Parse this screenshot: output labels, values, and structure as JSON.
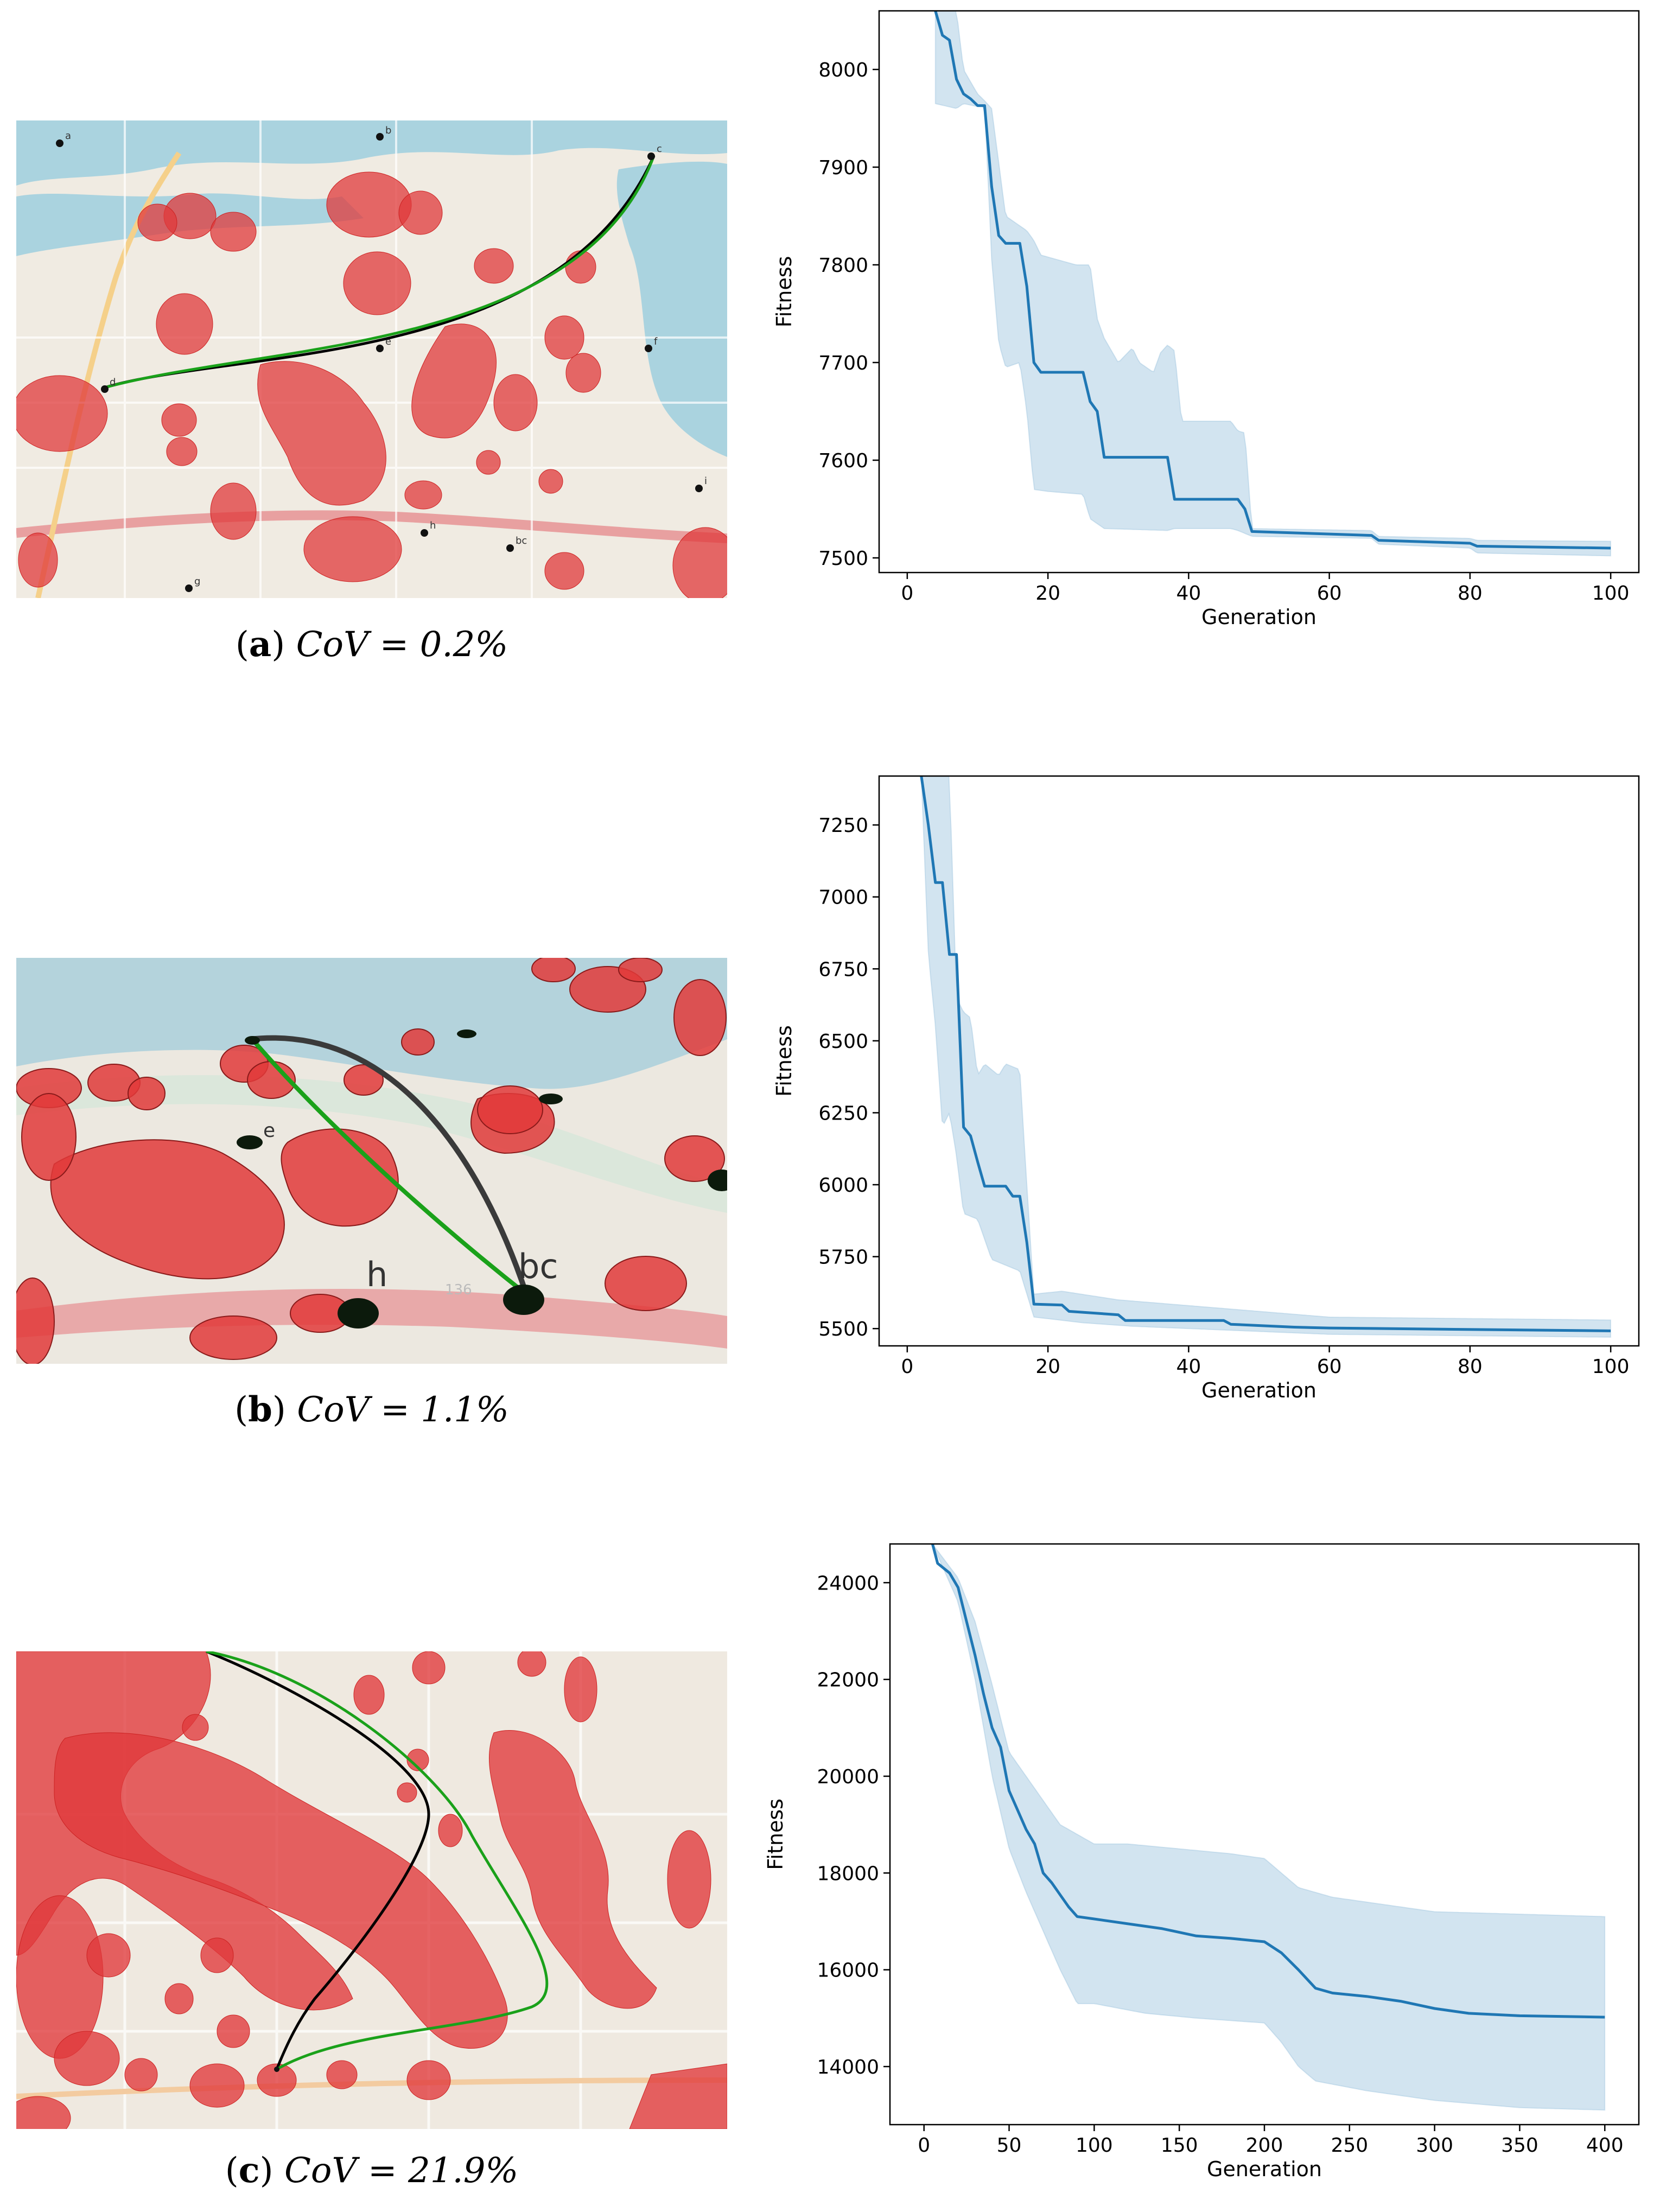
{
  "panels": [
    {
      "id": "a",
      "caption_letter": "a",
      "caption_eq": "CoV = 0.2%",
      "map_labels": [
        "a",
        "b",
        "c",
        "d",
        "e",
        "f",
        "h",
        "bc",
        "g",
        "i"
      ],
      "chart": {
        "type": "line",
        "xlabel": "Generation",
        "ylabel": "Fitness",
        "xlim": [
          -4,
          104
        ],
        "ylim": [
          7485,
          8060
        ],
        "xticks": [
          0,
          20,
          40,
          60,
          80,
          100
        ],
        "yticks": [
          7500,
          7600,
          7700,
          7800,
          7900,
          8000
        ],
        "mean": [
          [
            4,
            8060
          ],
          [
            5,
            8035
          ],
          [
            6,
            8030
          ],
          [
            7,
            7990
          ],
          [
            8,
            7975
          ],
          [
            9,
            7970
          ],
          [
            10,
            7963
          ],
          [
            11,
            7963
          ],
          [
            12,
            7880
          ],
          [
            13,
            7830
          ],
          [
            14,
            7822
          ],
          [
            16,
            7822
          ],
          [
            17,
            7778
          ],
          [
            18,
            7700
          ],
          [
            19,
            7690
          ],
          [
            25,
            7690
          ],
          [
            26,
            7660
          ],
          [
            27,
            7650
          ],
          [
            28,
            7603
          ],
          [
            37,
            7603
          ],
          [
            38,
            7560
          ],
          [
            47,
            7560
          ],
          [
            48,
            7550
          ],
          [
            49,
            7527
          ],
          [
            66,
            7523
          ],
          [
            67,
            7518
          ],
          [
            80,
            7515
          ],
          [
            81,
            7512
          ],
          [
            100,
            7510
          ]
        ],
        "upper": [
          [
            4,
            8060
          ],
          [
            7,
            8060
          ],
          [
            8,
            8000
          ],
          [
            10,
            7975
          ],
          [
            11,
            7968
          ],
          [
            12,
            7960
          ],
          [
            13,
            7905
          ],
          [
            14,
            7850
          ],
          [
            16,
            7840
          ],
          [
            17,
            7835
          ],
          [
            18,
            7825
          ],
          [
            19,
            7810
          ],
          [
            24,
            7800
          ],
          [
            26,
            7800
          ],
          [
            27,
            7745
          ],
          [
            28,
            7725
          ],
          [
            30,
            7700
          ],
          [
            32,
            7715
          ],
          [
            33,
            7700
          ],
          [
            35,
            7690
          ],
          [
            36,
            7710
          ],
          [
            37,
            7718
          ],
          [
            38,
            7712
          ],
          [
            39,
            7640
          ],
          [
            46,
            7640
          ],
          [
            47,
            7630
          ],
          [
            48,
            7628
          ],
          [
            49,
            7530
          ],
          [
            66,
            7528
          ],
          [
            67,
            7522
          ],
          [
            80,
            7520
          ],
          [
            81,
            7518
          ],
          [
            100,
            7517
          ]
        ],
        "lower": [
          [
            4,
            7965
          ],
          [
            7,
            7960
          ],
          [
            8,
            7965
          ],
          [
            10,
            7962
          ],
          [
            11,
            7962
          ],
          [
            12,
            7805
          ],
          [
            13,
            7720
          ],
          [
            14,
            7695
          ],
          [
            16,
            7700
          ],
          [
            17,
            7650
          ],
          [
            18,
            7570
          ],
          [
            20,
            7568
          ],
          [
            25,
            7565
          ],
          [
            26,
            7540
          ],
          [
            28,
            7530
          ],
          [
            37,
            7528
          ],
          [
            38,
            7530
          ],
          [
            46,
            7530
          ],
          [
            47,
            7528
          ],
          [
            49,
            7522
          ],
          [
            66,
            7520
          ],
          [
            67,
            7514
          ],
          [
            80,
            7510
          ],
          [
            81,
            7505
          ],
          [
            100,
            7502
          ]
        ]
      }
    },
    {
      "id": "b",
      "caption_letter": "b",
      "caption_eq": "CoV = 1.1%",
      "map_labels": [
        "e",
        "h",
        "bc",
        "136"
      ],
      "chart": {
        "type": "line",
        "xlabel": "Generation",
        "ylabel": "Fitness",
        "xlim": [
          -4,
          104
        ],
        "ylim": [
          5440,
          7420
        ],
        "xticks": [
          0,
          20,
          40,
          60,
          80,
          100
        ],
        "yticks": [
          5500,
          5750,
          6000,
          6250,
          6500,
          6750,
          7000,
          7250
        ],
        "mean": [
          [
            2,
            7420
          ],
          [
            3,
            7250
          ],
          [
            4,
            7050
          ],
          [
            5,
            7050
          ],
          [
            6,
            6800
          ],
          [
            7,
            6800
          ],
          [
            8,
            6200
          ],
          [
            9,
            6170
          ],
          [
            10,
            6080
          ],
          [
            11,
            5995
          ],
          [
            14,
            5995
          ],
          [
            15,
            5960
          ],
          [
            16,
            5960
          ],
          [
            17,
            5800
          ],
          [
            18,
            5585
          ],
          [
            22,
            5582
          ],
          [
            23,
            5560
          ],
          [
            30,
            5548
          ],
          [
            31,
            5528
          ],
          [
            45,
            5528
          ],
          [
            46,
            5515
          ],
          [
            55,
            5505
          ],
          [
            60,
            5502
          ],
          [
            100,
            5492
          ]
        ],
        "upper": [
          [
            2,
            7420
          ],
          [
            6,
            7420
          ],
          [
            7,
            6650
          ],
          [
            8,
            6600
          ],
          [
            9,
            6580
          ],
          [
            10,
            6380
          ],
          [
            11,
            6420
          ],
          [
            13,
            6380
          ],
          [
            14,
            6420
          ],
          [
            16,
            6400
          ],
          [
            17,
            6000
          ],
          [
            18,
            5620
          ],
          [
            22,
            5630
          ],
          [
            30,
            5600
          ],
          [
            40,
            5580
          ],
          [
            50,
            5560
          ],
          [
            60,
            5540
          ],
          [
            100,
            5530
          ]
        ],
        "lower": [
          [
            2,
            7420
          ],
          [
            3,
            6800
          ],
          [
            4,
            6550
          ],
          [
            5,
            6200
          ],
          [
            6,
            6250
          ],
          [
            7,
            6100
          ],
          [
            8,
            5900
          ],
          [
            10,
            5880
          ],
          [
            12,
            5740
          ],
          [
            14,
            5720
          ],
          [
            16,
            5700
          ],
          [
            18,
            5540
          ],
          [
            25,
            5520
          ],
          [
            32,
            5508
          ],
          [
            40,
            5500
          ],
          [
            60,
            5480
          ],
          [
            100,
            5470
          ]
        ]
      }
    },
    {
      "id": "c",
      "caption_letter": "c",
      "caption_eq": "CoV = 21.9%",
      "map_labels": [],
      "chart": {
        "type": "line",
        "xlabel": "Generation",
        "ylabel": "Fitness",
        "xlim": [
          -20,
          420
        ],
        "ylim": [
          12800,
          24800
        ],
        "xticks": [
          0,
          50,
          100,
          150,
          200,
          250,
          300,
          350,
          400
        ],
        "yticks": [
          14000,
          16000,
          18000,
          20000,
          22000,
          24000
        ],
        "mean": [
          [
            5,
            24800
          ],
          [
            8,
            24400
          ],
          [
            15,
            24200
          ],
          [
            20,
            23900
          ],
          [
            25,
            23200
          ],
          [
            30,
            22500
          ],
          [
            35,
            21700
          ],
          [
            40,
            21000
          ],
          [
            45,
            20600
          ],
          [
            50,
            19700
          ],
          [
            55,
            19300
          ],
          [
            60,
            18900
          ],
          [
            65,
            18600
          ],
          [
            70,
            18000
          ],
          [
            75,
            17800
          ],
          [
            80,
            17550
          ],
          [
            85,
            17300
          ],
          [
            90,
            17100
          ],
          [
            100,
            17050
          ],
          [
            120,
            16950
          ],
          [
            140,
            16850
          ],
          [
            160,
            16700
          ],
          [
            180,
            16650
          ],
          [
            200,
            16580
          ],
          [
            210,
            16350
          ],
          [
            220,
            16000
          ],
          [
            230,
            15620
          ],
          [
            240,
            15520
          ],
          [
            260,
            15450
          ],
          [
            280,
            15350
          ],
          [
            300,
            15200
          ],
          [
            320,
            15100
          ],
          [
            350,
            15050
          ],
          [
            400,
            15020
          ]
        ],
        "upper": [
          [
            5,
            24800
          ],
          [
            20,
            24100
          ],
          [
            30,
            23200
          ],
          [
            40,
            21900
          ],
          [
            50,
            20500
          ],
          [
            60,
            20000
          ],
          [
            70,
            19500
          ],
          [
            80,
            19000
          ],
          [
            90,
            18800
          ],
          [
            100,
            18600
          ],
          [
            120,
            18600
          ],
          [
            150,
            18500
          ],
          [
            180,
            18400
          ],
          [
            200,
            18300
          ],
          [
            210,
            18000
          ],
          [
            220,
            17700
          ],
          [
            240,
            17500
          ],
          [
            260,
            17400
          ],
          [
            300,
            17200
          ],
          [
            350,
            17150
          ],
          [
            400,
            17100
          ]
        ],
        "lower": [
          [
            5,
            24800
          ],
          [
            20,
            23600
          ],
          [
            30,
            22000
          ],
          [
            40,
            20000
          ],
          [
            50,
            18500
          ],
          [
            60,
            17600
          ],
          [
            70,
            16800
          ],
          [
            80,
            16000
          ],
          [
            90,
            15300
          ],
          [
            100,
            15300
          ],
          [
            130,
            15100
          ],
          [
            160,
            15000
          ],
          [
            200,
            14900
          ],
          [
            210,
            14500
          ],
          [
            220,
            14000
          ],
          [
            230,
            13700
          ],
          [
            260,
            13500
          ],
          [
            300,
            13300
          ],
          [
            350,
            13150
          ],
          [
            400,
            13100
          ]
        ]
      }
    }
  ]
}
